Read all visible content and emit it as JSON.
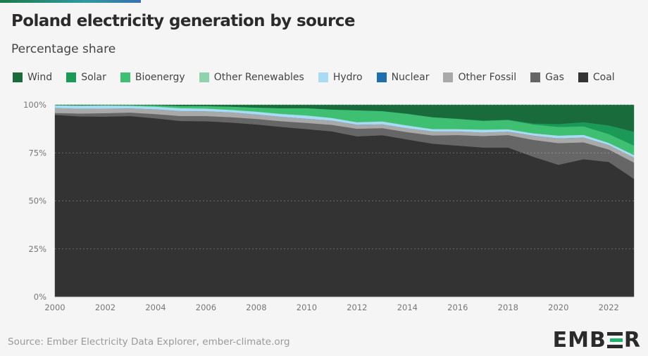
{
  "title": "Poland electricity generation by source",
  "subtitle": "Percentage share",
  "source": "Source: Ember Electricity Data Explorer, ember-climate.org",
  "logo": "EMBER",
  "legend": [
    {
      "name": "Wind",
      "color": "#1a6b3c"
    },
    {
      "name": "Solar",
      "color": "#1b9a57"
    },
    {
      "name": "Bioenergy",
      "color": "#3fbf72"
    },
    {
      "name": "Other Renewables",
      "color": "#8fd3ae"
    },
    {
      "name": "Hydro",
      "color": "#a9dcf4"
    },
    {
      "name": "Nuclear",
      "color": "#1e6fae"
    },
    {
      "name": "Other Fossil",
      "color": "#a9a9a9"
    },
    {
      "name": "Gas",
      "color": "#666666"
    },
    {
      "name": "Coal",
      "color": "#333333"
    }
  ],
  "chart_data": {
    "type": "area",
    "stacked": true,
    "x": [
      2000,
      2001,
      2002,
      2003,
      2004,
      2005,
      2006,
      2007,
      2008,
      2009,
      2010,
      2011,
      2012,
      2013,
      2014,
      2015,
      2016,
      2017,
      2018,
      2019,
      2020,
      2021,
      2022,
      2023
    ],
    "x_ticks": [
      "2000",
      "2002",
      "2004",
      "2006",
      "2008",
      "2010",
      "2012",
      "2014",
      "2016",
      "2018",
      "2020",
      "2022"
    ],
    "y_ticks": [
      "0%",
      "25%",
      "50%",
      "75%",
      "100%"
    ],
    "ylim": [
      0,
      100
    ],
    "series": [
      {
        "name": "Coal",
        "color": "#333333",
        "values": [
          94.8,
          94.0,
          93.9,
          94.2,
          93.0,
          91.6,
          91.5,
          90.8,
          89.8,
          88.5,
          87.4,
          86.2,
          83.6,
          84.2,
          82.0,
          79.8,
          78.8,
          77.8,
          77.8,
          73.0,
          68.8,
          71.7,
          70.3,
          61.5
        ]
      },
      {
        "name": "Gas",
        "color": "#666666",
        "values": [
          1.0,
          1.5,
          1.8,
          1.8,
          2.2,
          2.6,
          2.7,
          2.8,
          2.9,
          3.0,
          3.2,
          3.4,
          4.0,
          3.7,
          3.8,
          4.3,
          5.5,
          6.0,
          6.5,
          8.8,
          11.3,
          8.8,
          6.5,
          8.5
        ]
      },
      {
        "name": "Other Fossil",
        "color": "#a9a9a9",
        "values": [
          2.6,
          2.5,
          2.4,
          2.2,
          2.5,
          2.6,
          2.5,
          2.5,
          2.3,
          2.3,
          2.2,
          2.2,
          2.1,
          2.0,
          2.0,
          2.1,
          1.9,
          1.8,
          1.8,
          2.2,
          2.5,
          2.5,
          2.3,
          2.6
        ]
      },
      {
        "name": "Nuclear",
        "color": "#1e6fae",
        "values": [
          0,
          0,
          0,
          0,
          0,
          0,
          0,
          0,
          0,
          0,
          0,
          0,
          0,
          0,
          0,
          0,
          0,
          0,
          0,
          0,
          0,
          0,
          0,
          0
        ]
      },
      {
        "name": "Hydro",
        "color": "#a9dcf4",
        "values": [
          1.4,
          1.6,
          1.6,
          1.3,
          1.4,
          1.5,
          1.4,
          1.3,
          1.5,
          1.5,
          1.7,
          1.4,
          1.3,
          1.5,
          1.5,
          1.2,
          1.2,
          1.5,
          1.2,
          1.2,
          1.4,
          1.4,
          1.1,
          1.3
        ]
      },
      {
        "name": "Other Renewables",
        "color": "#8fd3ae",
        "values": [
          0,
          0,
          0,
          0,
          0,
          0,
          0,
          0,
          0,
          0,
          0,
          0,
          0,
          0,
          0,
          0,
          0,
          0,
          0,
          0,
          0,
          0,
          0,
          0
        ]
      },
      {
        "name": "Bioenergy",
        "color": "#3fbf72",
        "values": [
          0.1,
          0.2,
          0.2,
          0.4,
          0.7,
          1.1,
          1.3,
          1.7,
          2.1,
          3.0,
          3.8,
          4.4,
          6.2,
          5.4,
          6.1,
          6.2,
          5.3,
          4.6,
          4.8,
          4.6,
          4.5,
          4.4,
          4.6,
          4.9
        ]
      },
      {
        "name": "Solar",
        "color": "#1b9a57",
        "values": [
          0,
          0,
          0,
          0,
          0,
          0,
          0,
          0,
          0,
          0,
          0,
          0,
          0,
          0,
          0,
          0,
          0.1,
          0.1,
          0.2,
          0.5,
          1.5,
          2.2,
          4.5,
          7.2
        ]
      },
      {
        "name": "Wind",
        "color": "#1a6b3c",
        "values": [
          0.1,
          0.2,
          0.1,
          0.1,
          0.2,
          0.6,
          0.6,
          0.9,
          1.4,
          1.7,
          1.7,
          2.4,
          2.8,
          3.2,
          4.6,
          6.4,
          7.2,
          8.2,
          7.7,
          9.7,
          10.0,
          9.0,
          10.7,
          14.0
        ]
      }
    ]
  }
}
